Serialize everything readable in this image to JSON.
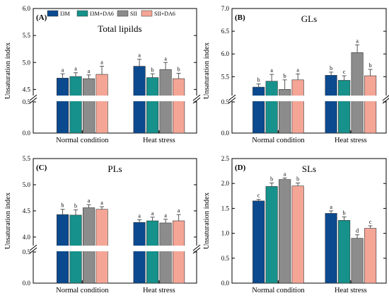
{
  "legend": [
    {
      "name": "I3M",
      "color": "#0b4a8f"
    },
    {
      "name": "I3M+DA6",
      "color": "#16918b"
    },
    {
      "name": "SII",
      "color": "#8c8c8c"
    },
    {
      "name": "SII+DA6",
      "color": "#f4a595"
    }
  ],
  "chart_data": [
    {
      "type": "bar",
      "panel": "(A)",
      "title": "Total lipilds",
      "ylabel": "Unsaturation index",
      "categories": [
        "Normal condition",
        "Heat stress"
      ],
      "axis_break": true,
      "lower_ticks": [
        "0.0",
        "0.5"
      ],
      "upper_ticks": [
        "4.5",
        "5.0",
        "5.5",
        "6.0"
      ],
      "lower_range": [
        0,
        0.5
      ],
      "upper_range": [
        4.4,
        6.0
      ],
      "series": [
        {
          "name": "I3M",
          "values": [
            4.71,
            4.93
          ],
          "errors": [
            0.08,
            0.13
          ],
          "letters": [
            "a",
            "a"
          ]
        },
        {
          "name": "I3M+DA6",
          "values": [
            4.74,
            4.72
          ],
          "errors": [
            0.07,
            0.07
          ],
          "letters": [
            "a",
            "b"
          ]
        },
        {
          "name": "SII",
          "values": [
            4.7,
            4.87
          ],
          "errors": [
            0.07,
            0.13
          ],
          "letters": [
            "a",
            "a"
          ]
        },
        {
          "name": "SII+DA6",
          "values": [
            4.78,
            4.7
          ],
          "errors": [
            0.15,
            0.1
          ],
          "letters": [
            "a",
            "b"
          ]
        }
      ]
    },
    {
      "type": "bar",
      "panel": "(B)",
      "title": "GLs",
      "ylabel": "Unsaturation index",
      "categories": [
        "Normal condition",
        "Heat stress"
      ],
      "axis_break": true,
      "lower_ticks": [
        "0.0",
        "0.5"
      ],
      "upper_ticks": [
        "5.5",
        "6.0",
        "6.5",
        "7.0"
      ],
      "lower_range": [
        0,
        0.5
      ],
      "upper_range": [
        5.1,
        7.0
      ],
      "series": [
        {
          "name": "I3M",
          "values": [
            5.27,
            5.53
          ],
          "errors": [
            0.07,
            0.07
          ],
          "letters": [
            "b",
            "b"
          ]
        },
        {
          "name": "I3M+DA6",
          "values": [
            5.4,
            5.42
          ],
          "errors": [
            0.15,
            0.1
          ],
          "letters": [
            "a",
            "c"
          ]
        },
        {
          "name": "SII",
          "values": [
            5.22,
            6.03
          ],
          "errors": [
            0.21,
            0.17
          ],
          "letters": [
            "b",
            "a"
          ]
        },
        {
          "name": "SII+DA6",
          "values": [
            5.43,
            5.52
          ],
          "errors": [
            0.13,
            0.14
          ],
          "letters": [
            "a",
            "b"
          ]
        }
      ]
    },
    {
      "type": "bar",
      "panel": "(C)",
      "title": "PLs",
      "ylabel": "Unsaturation index",
      "categories": [
        "Normal condition",
        "Heat stress"
      ],
      "axis_break": true,
      "lower_ticks": [
        "0.0",
        "0.5"
      ],
      "upper_ticks": [
        "4.0",
        "4.5",
        "5.0",
        "5.5"
      ],
      "lower_range": [
        0,
        0.5
      ],
      "upper_range": [
        3.85,
        5.5
      ],
      "series": [
        {
          "name": "I3M",
          "values": [
            4.43,
            4.28
          ],
          "errors": [
            0.1,
            0.05
          ],
          "letters": [
            "b",
            "a"
          ]
        },
        {
          "name": "I3M+DA6",
          "values": [
            4.42,
            4.31
          ],
          "errors": [
            0.1,
            0.07
          ],
          "letters": [
            "b",
            "a"
          ]
        },
        {
          "name": "SII",
          "values": [
            4.56,
            4.27
          ],
          "errors": [
            0.06,
            0.07
          ],
          "letters": [
            "a",
            "a"
          ]
        },
        {
          "name": "SII+DA6",
          "values": [
            4.53,
            4.31
          ],
          "errors": [
            0.05,
            0.12
          ],
          "letters": [
            "a",
            "a"
          ]
        }
      ]
    },
    {
      "type": "bar",
      "panel": "(D)",
      "title": "SLs",
      "ylabel": "Unsaturation index",
      "categories": [
        "Normal condition",
        "Heat stress"
      ],
      "axis_break": false,
      "ticks": [
        "0.0",
        "0.5",
        "1.0",
        "1.5",
        "2.0",
        "2.5"
      ],
      "ylim": [
        0,
        2.5
      ],
      "series": [
        {
          "name": "I3M",
          "values": [
            1.65,
            1.4
          ],
          "errors": [
            0.03,
            0.05
          ],
          "letters": [
            "c",
            "a"
          ]
        },
        {
          "name": "I3M+DA6",
          "values": [
            1.94,
            1.26
          ],
          "errors": [
            0.07,
            0.07
          ],
          "letters": [
            "b",
            "b"
          ]
        },
        {
          "name": "SII",
          "values": [
            2.08,
            0.9
          ],
          "errors": [
            0.03,
            0.07
          ],
          "letters": [
            "a",
            "d"
          ]
        },
        {
          "name": "SII+DA6",
          "values": [
            1.95,
            1.1
          ],
          "errors": [
            0.06,
            0.05
          ],
          "letters": [
            "b",
            "c"
          ]
        }
      ]
    }
  ]
}
